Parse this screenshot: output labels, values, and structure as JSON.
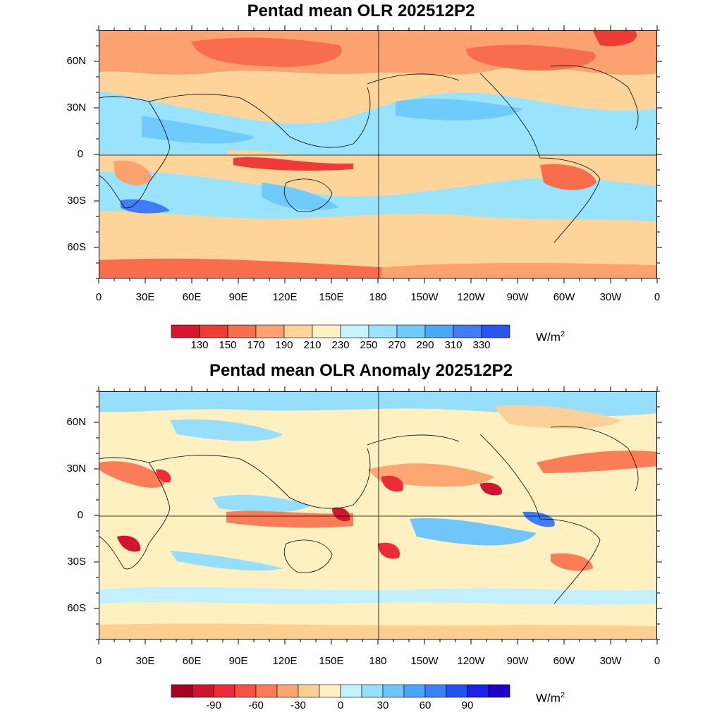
{
  "maps": [
    {
      "title": "Pentad mean OLR 202512P2",
      "unit_main": "W/m",
      "unit_sup": "2",
      "lat_labels": [
        "60N",
        "30N",
        "0",
        "30S",
        "60S"
      ],
      "lon_labels": [
        "0",
        "30E",
        "60E",
        "90E",
        "120E",
        "150E",
        "180",
        "150W",
        "120W",
        "90W",
        "60W",
        "30W",
        "0"
      ],
      "colorbar": {
        "colors": [
          "#d7172f",
          "#ef3b36",
          "#f96d4f",
          "#fca271",
          "#fdd49a",
          "#fef2c2",
          "#c6f3fd",
          "#9ae3fd",
          "#6fcbfc",
          "#4aa7f9",
          "#3f7cf5",
          "#2a54ef"
        ],
        "labels": [
          "130",
          "150",
          "170",
          "190",
          "210",
          "230",
          "250",
          "270",
          "290",
          "310",
          "330"
        ]
      }
    },
    {
      "title": "Pentad mean OLR Anomaly 202512P2",
      "unit_main": "W/m",
      "unit_sup": "2",
      "lat_labels": [
        "60N",
        "30N",
        "0",
        "30S",
        "60S"
      ],
      "lon_labels": [
        "0",
        "30E",
        "60E",
        "90E",
        "120E",
        "150E",
        "180",
        "150W",
        "120W",
        "90W",
        "60W",
        "30W",
        "0"
      ],
      "colorbar": {
        "colors": [
          "#a5001f",
          "#d0152e",
          "#ee2c35",
          "#f7523f",
          "#fb7d58",
          "#fca771",
          "#fdcf90",
          "#fef0c0",
          "#c2f1fd",
          "#96dffc",
          "#6ec6fb",
          "#4ba6f8",
          "#3c7ff4",
          "#2450ee",
          "#1d20e8",
          "#2000c8"
        ],
        "labels": [
          "-90",
          "-60",
          "-30",
          "0",
          "30",
          "60",
          "90"
        ]
      }
    }
  ]
}
